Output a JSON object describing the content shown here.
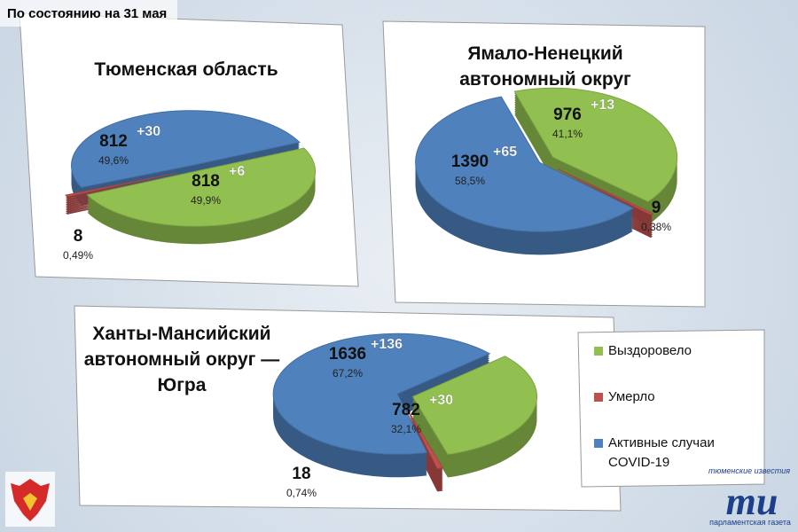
{
  "header": "По состоянию на 31 мая",
  "legend": {
    "entries": [
      {
        "label": "Выздоровело",
        "color": "#92c050"
      },
      {
        "label": "Умерло",
        "color": "#c0504d"
      },
      {
        "label": "Активные случаи COVID-19",
        "color": "#4f81bd"
      }
    ]
  },
  "logo": {
    "top": "тюменские известия",
    "mark": "ти",
    "bottom": "парламентская газета"
  },
  "chart_data": [
    {
      "type": "pie",
      "title": "Тюменская область",
      "values": [
        818,
        8,
        812
      ],
      "percents": [
        49.9,
        0.49,
        49.6
      ],
      "percent_labels": [
        "49,9%",
        "0,49%",
        "49,6%"
      ],
      "increments": [
        6,
        null,
        30
      ],
      "increment_labels": [
        "+6",
        null,
        "+30"
      ],
      "colors": [
        "#92c050",
        "#c0504d",
        "#4f81bd"
      ]
    },
    {
      "type": "pie",
      "title": "Ямало-Ненецкий автономный округ",
      "values": [
        976,
        9,
        1390
      ],
      "percents": [
        41.1,
        0.38,
        58.5
      ],
      "percent_labels": [
        "41,1%",
        "0,38%",
        "58,5%"
      ],
      "increments": [
        13,
        null,
        65
      ],
      "increment_labels": [
        "+13",
        null,
        "+65"
      ],
      "colors": [
        "#92c050",
        "#c0504d",
        "#4f81bd"
      ]
    },
    {
      "type": "pie",
      "title": "Ханты-Мансийский автономный округ — Югра",
      "values": [
        782,
        18,
        1636
      ],
      "percents": [
        32.1,
        0.74,
        67.2
      ],
      "percent_labels": [
        "32,1%",
        "0,74%",
        "67,2%"
      ],
      "increments": [
        30,
        null,
        136
      ],
      "increment_labels": [
        "+30",
        null,
        "+136"
      ],
      "colors": [
        "#92c050",
        "#c0504d",
        "#4f81bd"
      ]
    }
  ]
}
